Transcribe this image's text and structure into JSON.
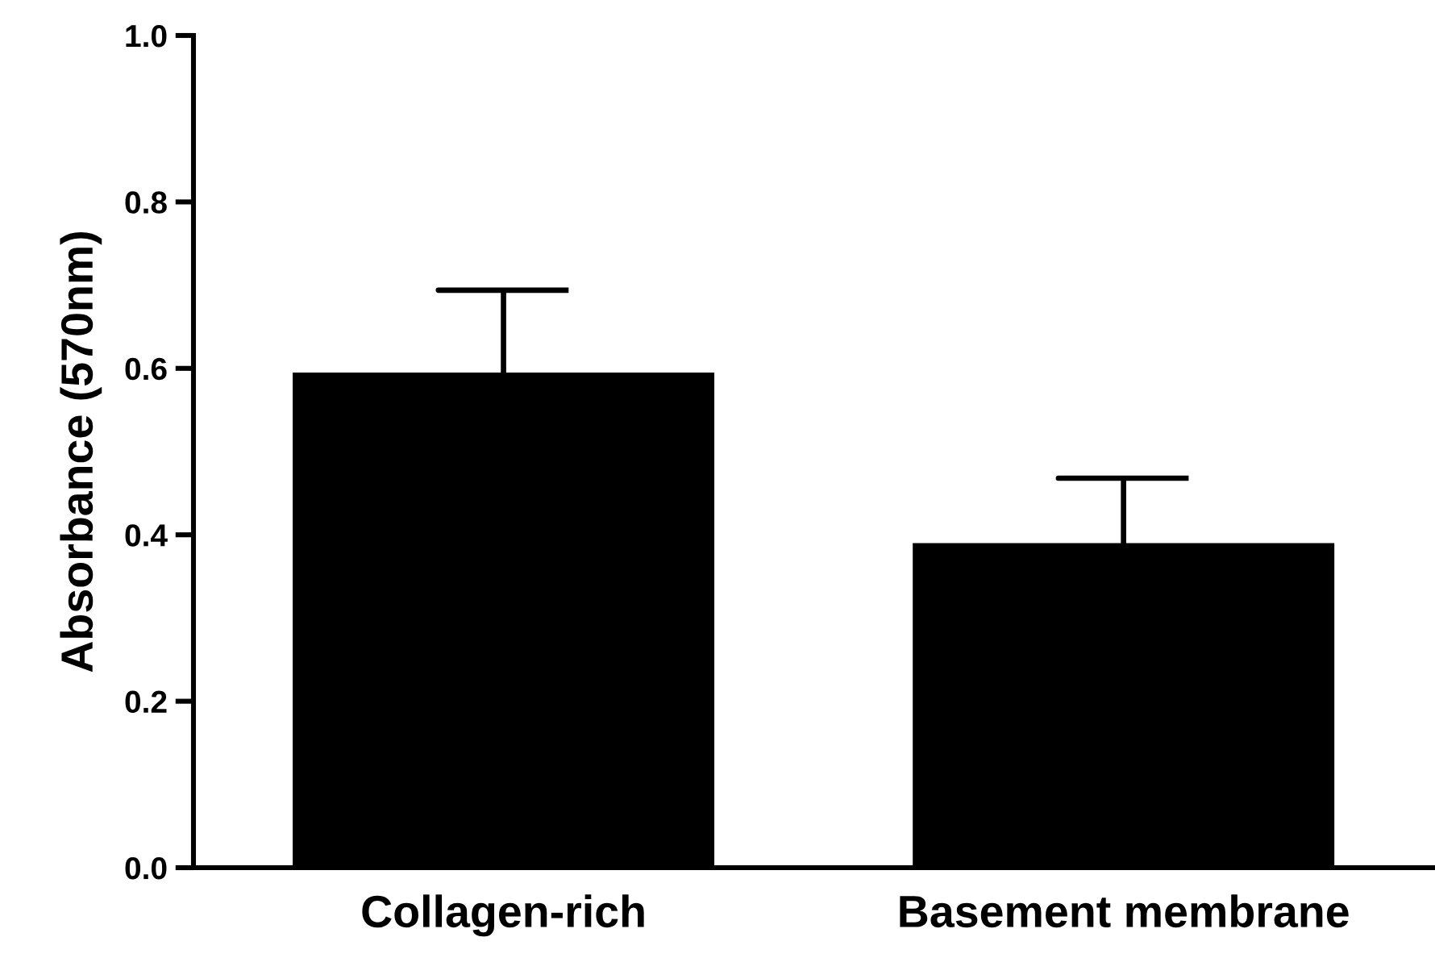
{
  "chart_data": {
    "type": "bar",
    "ylabel": "Absorbance (570nm)",
    "categories": [
      "Collagen-rich",
      "Basement membrane"
    ],
    "values": [
      0.595,
      0.39
    ],
    "errors": [
      0.099,
      0.078
    ],
    "color": "#000000",
    "ylim": [
      0,
      1.0
    ],
    "yticks": [
      {
        "value": 0,
        "label": "0.0"
      },
      {
        "value": 0.2,
        "label": "0.2"
      },
      {
        "value": 0.4,
        "label": "0.4"
      },
      {
        "value": 0.6,
        "label": "0.6"
      },
      {
        "value": 0.8,
        "label": "0.8"
      },
      {
        "value": 1.0,
        "label": "1.0"
      }
    ],
    "grid": false
  }
}
